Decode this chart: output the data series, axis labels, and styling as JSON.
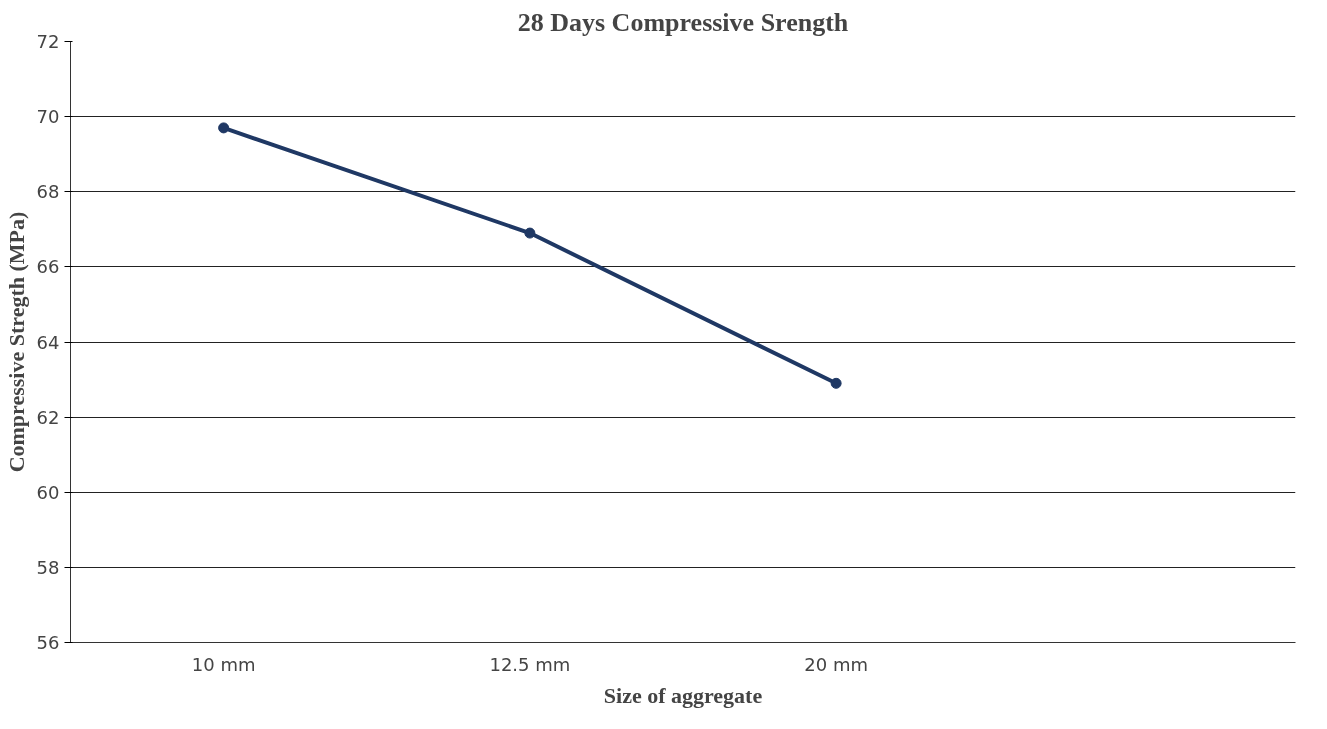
{
  "chart_data": {
    "type": "line",
    "title": "28 Days Compressive Srength",
    "xlabel": "Size of aggregate",
    "ylabel": "Compressive Stregth (MPa)",
    "categories": [
      "10 mm",
      "12.5 mm",
      "20 mm",
      null
    ],
    "series": [
      {
        "color": "#1f3864",
        "values": [
          69.7,
          66.9,
          62.9,
          null
        ]
      }
    ],
    "ylim": [
      56,
      72
    ],
    "yticks": [
      56,
      58,
      60,
      62,
      64,
      66,
      68,
      70,
      72
    ],
    "grid": "y",
    "marker": "circle",
    "line_style": "solid"
  }
}
